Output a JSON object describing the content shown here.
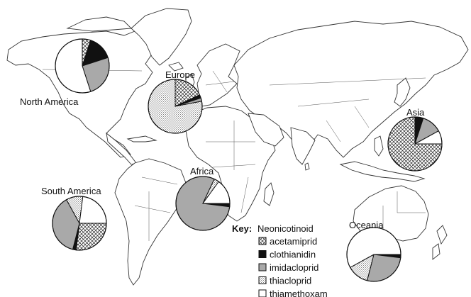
{
  "chart_data": {
    "type": "pie",
    "title": "",
    "key": {
      "label": "Key",
      "heading": "Neonicotinoid",
      "entries": [
        {
          "name": "acetamiprid",
          "pattern": "crosshatch"
        },
        {
          "name": "clothianidin",
          "pattern": "black"
        },
        {
          "name": "imidacloprid",
          "pattern": "grey"
        },
        {
          "name": "thiacloprid",
          "pattern": "dotted"
        },
        {
          "name": "thiamethoxam",
          "pattern": "white"
        }
      ]
    },
    "pies": [
      {
        "region": "North America",
        "slices": {
          "acetamiprid": 5,
          "clothianidin": 15,
          "imidacloprid": 25,
          "thiacloprid": 0,
          "thiamethoxam": 55
        }
      },
      {
        "region": "Europe",
        "slices": {
          "acetamiprid": 18,
          "clothianidin": 2,
          "imidacloprid": 2,
          "thiacloprid": 78,
          "thiamethoxam": 0
        }
      },
      {
        "region": "Asia",
        "slices": {
          "acetamiprid": 75,
          "clothianidin": 5,
          "imidacloprid": 12,
          "thiacloprid": 0,
          "thiamethoxam": 8
        }
      },
      {
        "region": "Africa",
        "slices": {
          "acetamiprid": 0,
          "clothianidin": 2,
          "imidacloprid": 80,
          "thiacloprid": 3,
          "thiamethoxam": 15
        }
      },
      {
        "region": "South America",
        "slices": {
          "acetamiprid": 27,
          "clothianidin": 2,
          "imidacloprid": 38,
          "thiacloprid": 10,
          "thiamethoxam": 23
        }
      },
      {
        "region": "Oceania",
        "slices": {
          "acetamiprid": 0,
          "clothianidin": 2,
          "imidacloprid": 27,
          "thiacloprid": 13,
          "thiamethoxam": 58
        }
      }
    ]
  }
}
